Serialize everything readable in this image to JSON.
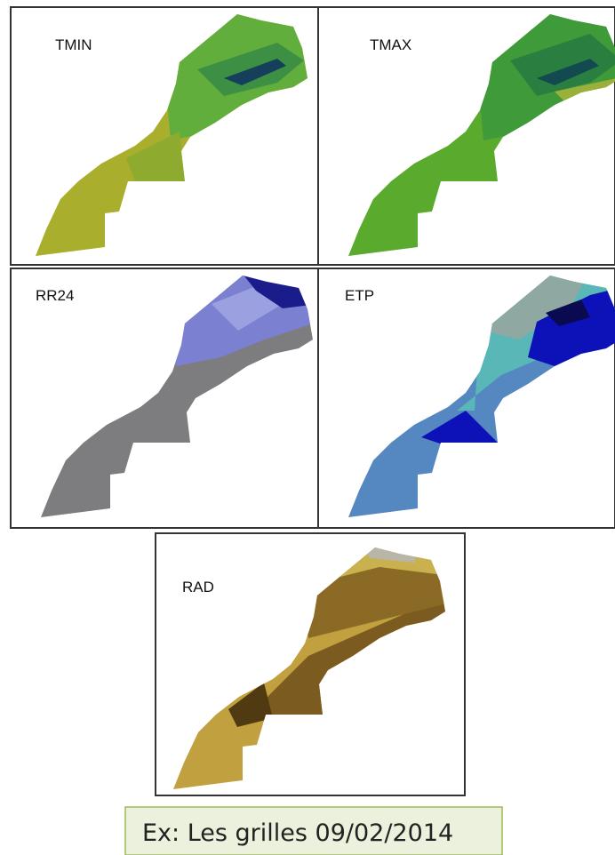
{
  "panels": [
    {
      "label": "TMIN"
    },
    {
      "label": "TMAX"
    },
    {
      "label": "RR24"
    },
    {
      "label": "ETP"
    },
    {
      "label": "RAD"
    }
  ],
  "caption": "Ex: Les grilles 09/02/2014"
}
